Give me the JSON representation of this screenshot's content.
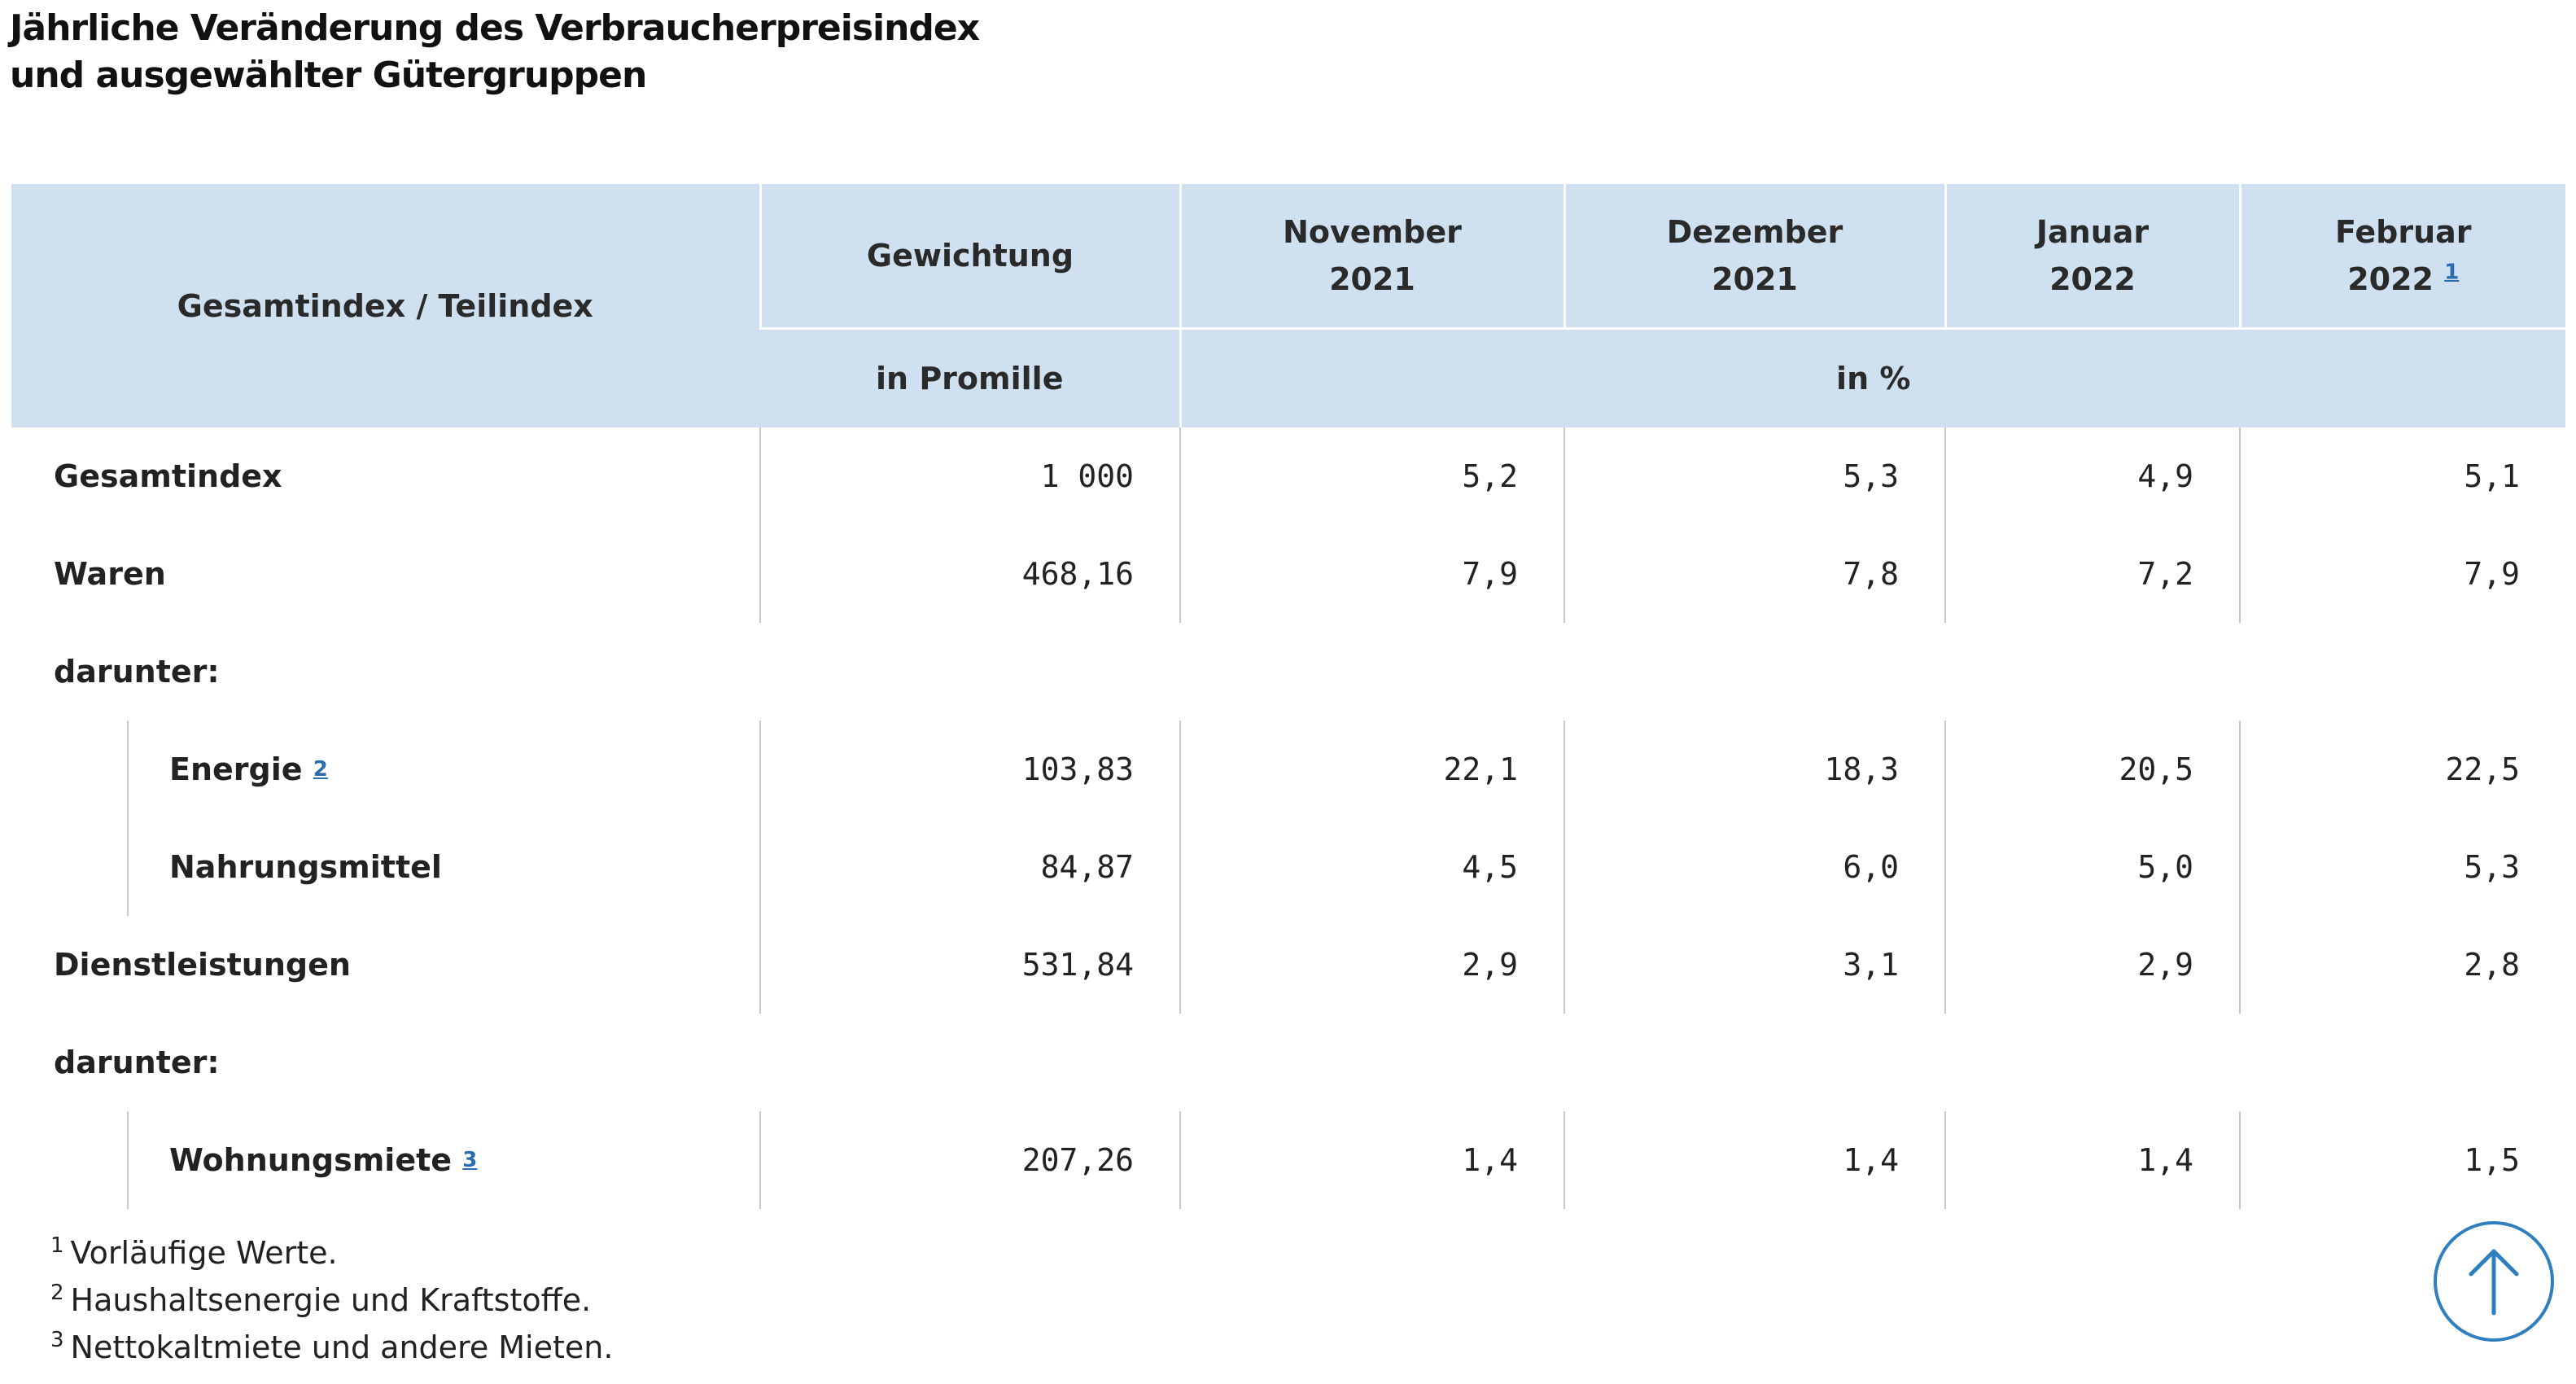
{
  "title": {
    "line1": "Jährliche Veränderung des Verbraucherpreisindex",
    "line2": "und ausgewählter Gütergruppen"
  },
  "table": {
    "header": {
      "col0": "Gesamtindex / Teilindex",
      "col1": "Gewichtung",
      "months": [
        {
          "month": "November",
          "year": "2021",
          "footnote": ""
        },
        {
          "month": "Dezember",
          "year": "2021",
          "footnote": ""
        },
        {
          "month": "Januar",
          "year": "2022",
          "footnote": ""
        },
        {
          "month": "Februar",
          "year": "2022",
          "footnote": "1"
        }
      ],
      "unit_weight": "in Promille",
      "unit_change": "in %"
    },
    "rows": [
      {
        "label": "Gesamtindex",
        "footnote": "",
        "weight": "1 000",
        "values": [
          "5,2",
          "5,3",
          "4,9",
          "5,1"
        ]
      },
      {
        "label": "Waren",
        "footnote": "",
        "weight": "468,16",
        "values": [
          "7,9",
          "7,8",
          "7,2",
          "7,9"
        ]
      },
      {
        "label": "darunter:"
      },
      {
        "label": "Energie",
        "footnote": "2",
        "weight": "103,83",
        "values": [
          "22,1",
          "18,3",
          "20,5",
          "22,5"
        ]
      },
      {
        "label": "Nahrungsmittel",
        "footnote": "",
        "weight": "84,87",
        "values": [
          "4,5",
          "6,0",
          "5,0",
          "5,3"
        ]
      },
      {
        "label": "Dienstleistungen",
        "footnote": "",
        "weight": "531,84",
        "values": [
          "2,9",
          "3,1",
          "2,9",
          "2,8"
        ]
      },
      {
        "label": "darunter:"
      },
      {
        "label": "Wohnungsmiete",
        "footnote": "3",
        "weight": "207,26",
        "values": [
          "1,4",
          "1,4",
          "1,4",
          "1,5"
        ]
      }
    ]
  },
  "footnotes": [
    {
      "num": "1",
      "text": "Vorläufige Werte."
    },
    {
      "num": "2",
      "text": "Haushaltsenergie und Kraftstoffe."
    },
    {
      "num": "3",
      "text": "Nettokaltmiete und andere Mieten."
    }
  ],
  "icons": {
    "back_to_top": "arrow-up-icon"
  },
  "colors": {
    "header_bg": "#cfe0f0",
    "link": "#2b6cb0",
    "accent": "#2f7fbf"
  }
}
